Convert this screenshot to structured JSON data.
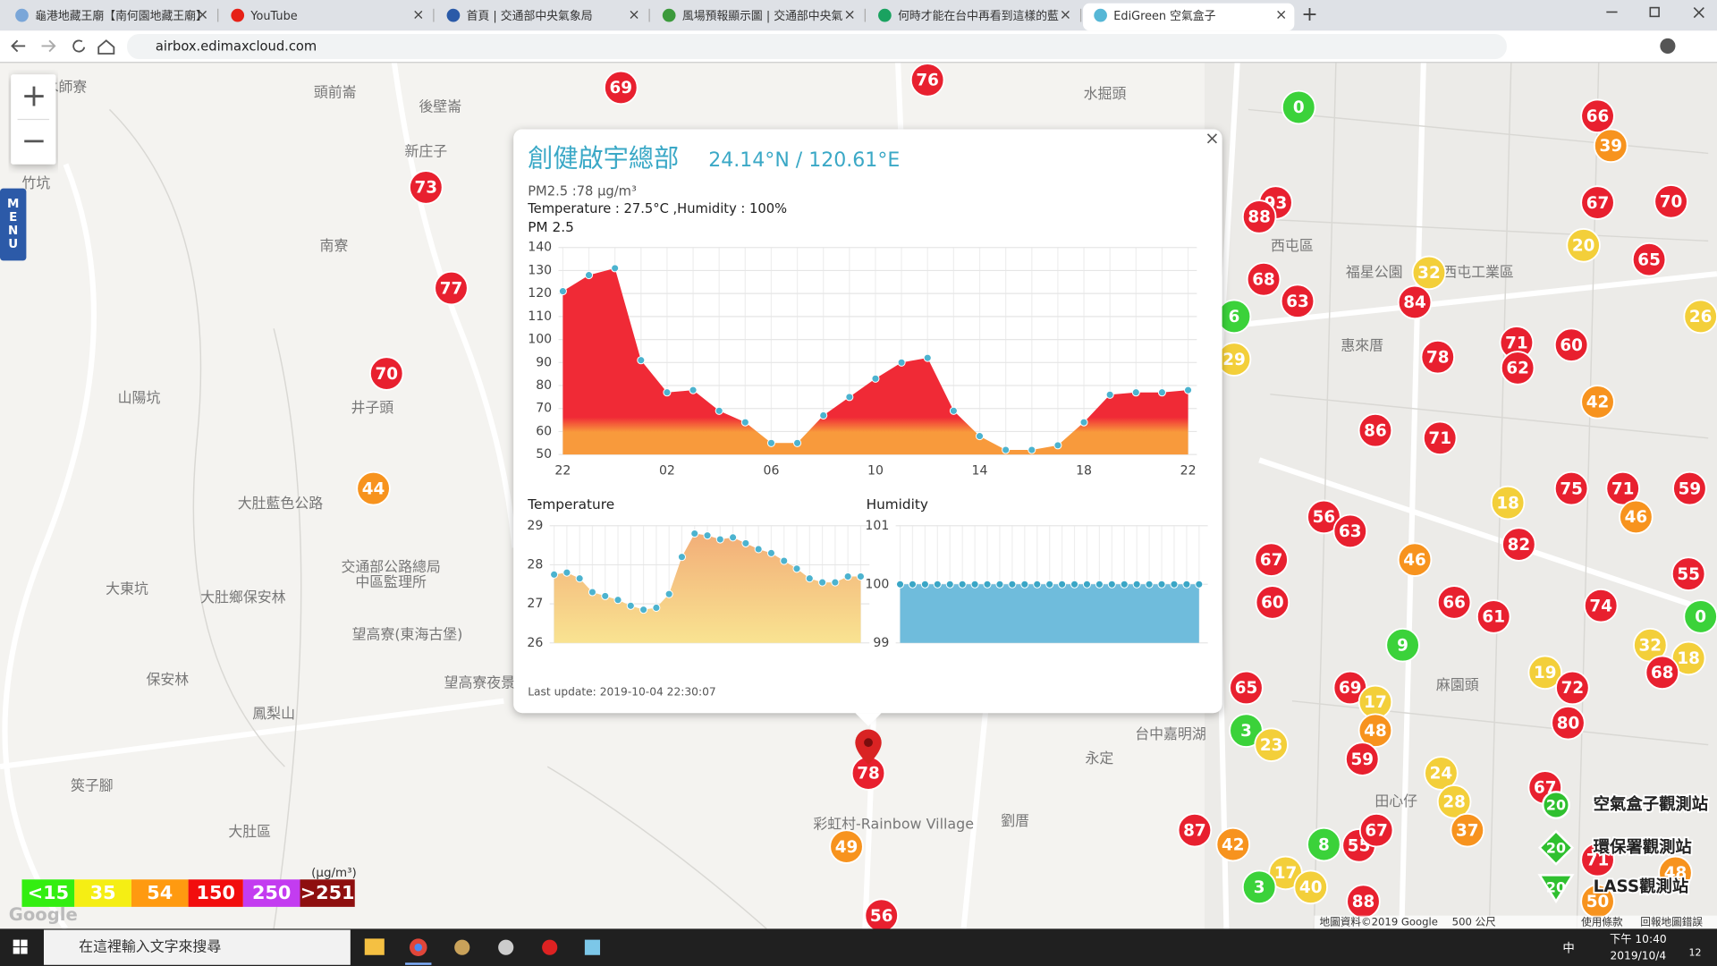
{
  "browser": {
    "tabs": [
      "龜港地藏王廟【南何園地藏王廟】",
      "YouTube",
      "首頁 | 交通部中央氣象局",
      "風場預報顯示圖 | 交通部中央氣",
      "何時才能在台中再看到這樣的藍",
      "EdiGreen 空氣盒子"
    ],
    "url": "airbox.edimaxcloud.com"
  },
  "map": {
    "menu": "MENU",
    "zoom_in": "+",
    "zoom_out": "−",
    "labels": [
      "頭前崙",
      "後壁崙",
      "新庄子",
      "竹坑",
      "南寮",
      "山陽坑",
      "井子頭",
      "大肚藍色公路",
      "大東坑",
      "大肚鄉保安林",
      "保安林",
      "鳳梨山",
      "大肚區",
      "筴子腳",
      "望高寮(東海古堡)",
      "望高寮夜景",
      "交通部公路總局",
      "中區監理所",
      "彩虹村-Rainbow Village",
      "永定",
      "劉厝",
      "水掘頭",
      "西屯區",
      "福星公園",
      "西屯工業區",
      "惠來厝",
      "麻園頭",
      "田心仔",
      "台中嘉明湖",
      "水師寮"
    ],
    "palette": {
      "r": "#e8202f",
      "o": "#f7931e",
      "y": "#f3cf3a",
      "g": "#3bd23a"
    },
    "markers": [
      {
        "v": 69,
        "c": "r"
      },
      {
        "v": 76,
        "c": "r"
      },
      {
        "v": 73,
        "c": "r"
      },
      {
        "v": 77,
        "c": "r"
      },
      {
        "v": 70,
        "c": "r"
      },
      {
        "v": 44,
        "c": "o"
      },
      {
        "v": 49,
        "c": "o"
      },
      {
        "v": 56,
        "c": "r"
      },
      {
        "v": 0,
        "c": "g"
      },
      {
        "v": 66,
        "c": "r"
      },
      {
        "v": 39,
        "c": "o"
      },
      {
        "v": 67,
        "c": "r"
      },
      {
        "v": 70,
        "c": "r"
      },
      {
        "v": 20,
        "c": "y"
      },
      {
        "v": 65,
        "c": "r"
      },
      {
        "v": 93,
        "c": "r"
      },
      {
        "v": 88,
        "c": "r"
      },
      {
        "v": 32,
        "c": "y"
      },
      {
        "v": 68,
        "c": "r"
      },
      {
        "v": 63,
        "c": "r"
      },
      {
        "v": 84,
        "c": "r"
      },
      {
        "v": 6,
        "c": "g"
      },
      {
        "v": 29,
        "c": "y"
      },
      {
        "v": 26,
        "c": "y"
      },
      {
        "v": 71,
        "c": "r"
      },
      {
        "v": 62,
        "c": "r"
      },
      {
        "v": 60,
        "c": "r"
      },
      {
        "v": 78,
        "c": "r"
      },
      {
        "v": 42,
        "c": "o"
      },
      {
        "v": 86,
        "c": "r"
      },
      {
        "v": 71,
        "c": "r"
      },
      {
        "v": 75,
        "c": "r"
      },
      {
        "v": 71,
        "c": "r"
      },
      {
        "v": 59,
        "c": "r"
      },
      {
        "v": 18,
        "c": "y"
      },
      {
        "v": 46,
        "c": "o"
      },
      {
        "v": 56,
        "c": "r"
      },
      {
        "v": 63,
        "c": "r"
      },
      {
        "v": 82,
        "c": "r"
      },
      {
        "v": 67,
        "c": "r"
      },
      {
        "v": 46,
        "c": "o"
      },
      {
        "v": 55,
        "c": "r"
      },
      {
        "v": 60,
        "c": "r"
      },
      {
        "v": 66,
        "c": "r"
      },
      {
        "v": 61,
        "c": "r"
      },
      {
        "v": 74,
        "c": "r"
      },
      {
        "v": 0,
        "c": "g"
      },
      {
        "v": 9,
        "c": "g"
      },
      {
        "v": 32,
        "c": "y"
      },
      {
        "v": 18,
        "c": "y"
      },
      {
        "v": 19,
        "c": "y"
      },
      {
        "v": 68,
        "c": "r"
      },
      {
        "v": 72,
        "c": "r"
      },
      {
        "v": 65,
        "c": "r"
      },
      {
        "v": 69,
        "c": "r"
      },
      {
        "v": 17,
        "c": "y"
      },
      {
        "v": 48,
        "c": "o"
      },
      {
        "v": 80,
        "c": "r"
      },
      {
        "v": 3,
        "c": "g"
      },
      {
        "v": 23,
        "c": "y"
      },
      {
        "v": 59,
        "c": "r"
      },
      {
        "v": 24,
        "c": "y"
      },
      {
        "v": 28,
        "c": "y"
      },
      {
        "v": 67,
        "c": "r"
      },
      {
        "v": 37,
        "c": "o"
      },
      {
        "v": 87,
        "c": "r"
      },
      {
        "v": 42,
        "c": "o"
      },
      {
        "v": 8,
        "c": "g"
      },
      {
        "v": 55,
        "c": "r"
      },
      {
        "v": 67,
        "c": "r"
      },
      {
        "v": 71,
        "c": "r"
      },
      {
        "v": 48,
        "c": "o"
      },
      {
        "v": 17,
        "c": "y"
      },
      {
        "v": 40,
        "c": "y"
      },
      {
        "v": 3,
        "c": "g"
      },
      {
        "v": 88,
        "c": "r"
      },
      {
        "v": 50,
        "c": "o"
      },
      {
        "v": 78,
        "c": "r"
      }
    ],
    "legend": {
      "unit": "(μg/m³)",
      "items": [
        {
          "label": "<15",
          "color": "#33ee11"
        },
        {
          "label": "35",
          "color": "#f5ee14"
        },
        {
          "label": "54",
          "color": "#ff9a10"
        },
        {
          "label": "150",
          "color": "#f20d0d"
        },
        {
          "label": "250",
          "color": "#c33cf0"
        },
        {
          "label": ">251",
          "color": "#8e0f0f"
        }
      ]
    },
    "stations": {
      "icon": "20",
      "items": [
        "空氣盒子觀測站",
        "環保署觀測站",
        "LASS觀測站"
      ]
    },
    "attribution": [
      "地圖資料©2019 Google",
      "500 公尺",
      "使用條款",
      "回報地圖錯誤"
    ],
    "google": "Google"
  },
  "popup": {
    "close": "×",
    "name": "創健啟宇總部",
    "coords": "24.14°N / 120.61°E",
    "pm": "PM2.5 :78 μg/m³",
    "weather": "Temperature : 27.5°C ,Humidity : 100%",
    "updated": "Last update: 2019-10-04 22:30:07"
  },
  "chart_data": [
    {
      "type": "area",
      "title": "PM 2.5",
      "categories": [
        "22",
        null,
        null,
        null,
        "02",
        null,
        null,
        null,
        "06",
        null,
        null,
        null,
        "10",
        null,
        null,
        null,
        "14",
        null,
        null,
        null,
        "18",
        null,
        null,
        null,
        "22"
      ],
      "values": [
        121,
        128,
        131,
        91,
        77,
        78,
        69,
        64,
        55,
        55,
        67,
        75,
        83,
        90,
        92,
        69,
        58,
        52,
        52,
        54,
        64,
        76,
        77,
        77,
        78
      ],
      "ylim": [
        50,
        140
      ],
      "yticks": [
        50,
        60,
        70,
        80,
        90,
        100,
        110,
        120,
        130,
        140
      ],
      "colors": [
        "#f02a36",
        "#f89a3c"
      ],
      "marker_color": "#4cb3cf",
      "grid": true
    },
    {
      "type": "area",
      "title": "Temperature",
      "values": [
        27.75,
        27.8,
        27.65,
        27.3,
        27.2,
        27.1,
        26.95,
        26.85,
        26.9,
        27.25,
        28.2,
        28.8,
        28.75,
        28.65,
        28.7,
        28.55,
        28.4,
        28.3,
        28.1,
        27.9,
        27.65,
        27.55,
        27.55,
        27.7,
        27.7
      ],
      "ylim": [
        26,
        29
      ],
      "yticks": [
        26,
        27,
        28,
        29
      ],
      "colors": [
        "#f2ae78",
        "#f9e391"
      ],
      "marker_color": "#4cb3cf",
      "grid": true
    },
    {
      "type": "area",
      "title": "Humidity",
      "values": [
        100,
        100,
        100,
        100,
        100,
        100,
        100,
        100,
        100,
        100,
        100,
        100,
        100,
        100,
        100,
        100,
        100,
        100,
        100,
        100,
        100,
        100,
        100,
        100,
        100
      ],
      "ylim": [
        99,
        101
      ],
      "yticks": [
        99,
        100,
        101
      ],
      "colors": [
        "#6fbcdc",
        "#6fbcdc"
      ],
      "marker_color": "#3aa6c6",
      "grid": true
    }
  ],
  "taskbar": {
    "search": "在這裡輸入文字來搜尋",
    "ime": "中",
    "time": "下午 10:40",
    "date": "2019/10/4",
    "notifications": "12"
  }
}
